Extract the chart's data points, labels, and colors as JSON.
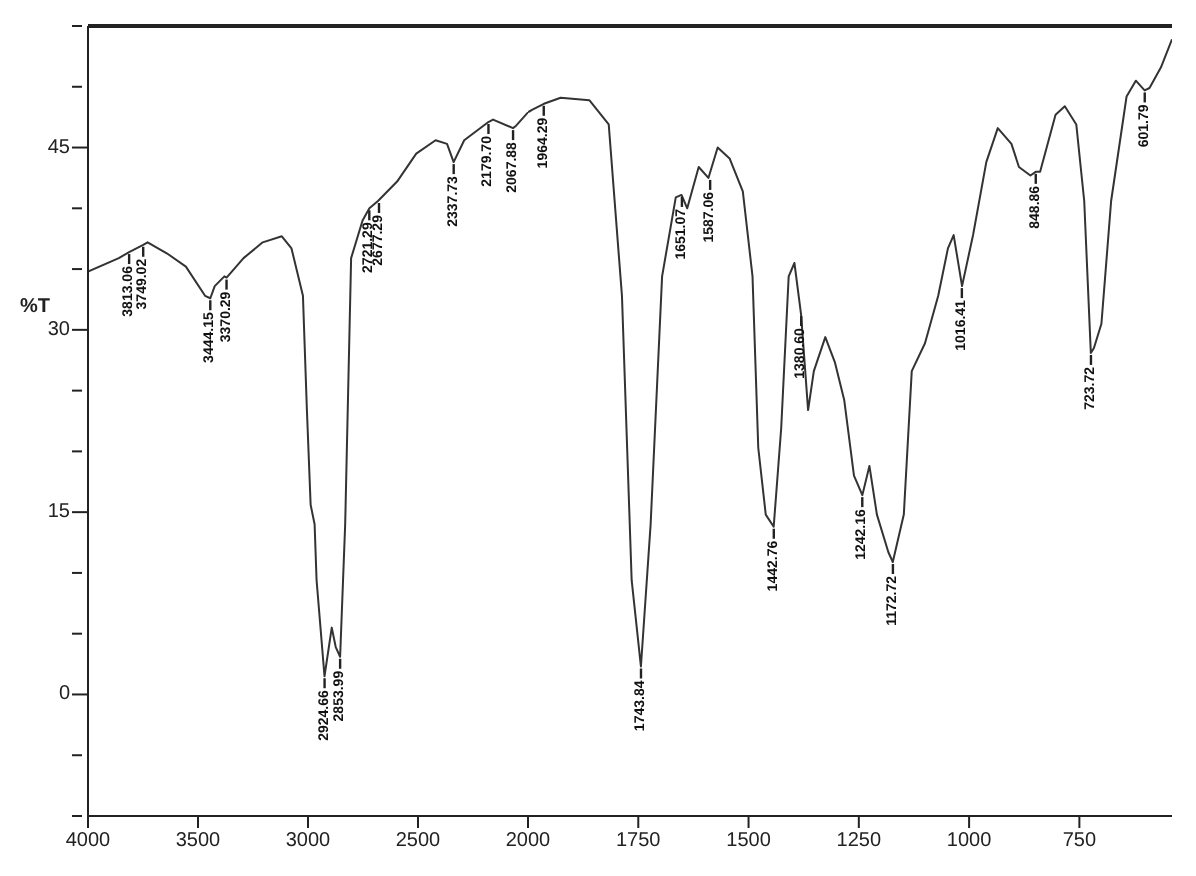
{
  "chart_data": [
    {
      "type": "line",
      "ylabel": "%T",
      "xlim": [
        4000,
        2000
      ],
      "xticks": [
        4000,
        3500,
        3000,
        2500,
        2000
      ],
      "ylim": [
        -10,
        55
      ],
      "yticks": [
        {
          "value": -10,
          "label": null
        },
        {
          "value": -5,
          "label": null
        },
        0,
        {
          "value": 5,
          "label": null
        },
        {
          "value": 10,
          "label": null
        },
        15,
        {
          "value": 20,
          "label": null
        },
        {
          "value": 25,
          "label": null
        },
        30,
        {
          "value": 35,
          "label": null
        },
        {
          "value": 40,
          "label": null
        },
        45,
        {
          "value": 50,
          "label": null
        },
        {
          "value": 55,
          "label": null
        }
      ],
      "marker": "none",
      "line_style": "solid",
      "series": [
        {
          "color": "#333333",
          "x": [
            4000,
            3860,
            3813,
            3749,
            3729,
            3642,
            3555,
            3468,
            3444,
            3424,
            3380,
            3370,
            3293,
            3206,
            3119,
            3075,
            3023,
            3005,
            2988,
            2970,
            2961,
            2925,
            2892,
            2874,
            2854,
            2831,
            2804,
            2752,
            2721,
            2682,
            2595,
            2508,
            2420,
            2368,
            2338,
            2290,
            2180,
            2159,
            2068,
            2054,
            2000
          ],
          "values": [
            34.8,
            35.9,
            36.4,
            37.0,
            37.2,
            36.3,
            35.2,
            32.8,
            32.6,
            33.6,
            34.4,
            34.3,
            35.9,
            37.2,
            37.7,
            36.7,
            32.8,
            23.4,
            15.6,
            14.0,
            9.4,
            1.5,
            5.5,
            3.9,
            3.1,
            14.0,
            35.9,
            39.0,
            40.0,
            40.6,
            42.2,
            44.5,
            45.6,
            45.3,
            43.8,
            45.6,
            47.1,
            47.3,
            46.6,
            46.8,
            47.9
          ]
        }
      ],
      "annotations": [
        {
          "text": "3813.06",
          "x": 3813.06,
          "y": 36.4
        },
        {
          "text": "3749.02",
          "x": 3749.02,
          "y": 37.0
        },
        {
          "text": "3444.15",
          "x": 3444.15,
          "y": 32.6
        },
        {
          "text": "3370.29",
          "x": 3370.29,
          "y": 34.3
        },
        {
          "text": "2924.66",
          "x": 2924.66,
          "y": 1.5
        },
        {
          "text": "2853.99",
          "x": 2853.99,
          "y": 3.1
        },
        {
          "text": "2721.29",
          "x": 2721.29,
          "y": 40.0
        },
        {
          "text": "2677.29",
          "x": 2677.29,
          "y": 40.6
        },
        {
          "text": "2337.73",
          "x": 2337.73,
          "y": 43.8
        },
        {
          "text": "2179.70",
          "x": 2179.7,
          "y": 47.1
        },
        {
          "text": "2067.88",
          "x": 2067.88,
          "y": 46.6
        }
      ]
    },
    {
      "type": "line",
      "tick_labels": "x",
      "xlim": [
        2000,
        540
      ],
      "xticks": [
        1750,
        1500,
        1250,
        1000,
        750
      ],
      "ylim": [
        -10,
        55
      ],
      "marker": "none",
      "line_style": "solid",
      "series": [
        {
          "color": "#333333",
          "x": [
            2000,
            1991,
            1964,
            1926,
            1861,
            1817,
            1787,
            1765,
            1744,
            1722,
            1696,
            1665,
            1652,
            1639,
            1613,
            1591,
            1570,
            1543,
            1513,
            1491,
            1478,
            1461,
            1443,
            1426,
            1409,
            1396,
            1381,
            1365,
            1352,
            1326,
            1304,
            1283,
            1261,
            1242,
            1226,
            1209,
            1183,
            1173,
            1148,
            1130,
            1100,
            1070,
            1048,
            1035,
            1016,
            991,
            961,
            935,
            904,
            887,
            861,
            849,
            839,
            804,
            783,
            757,
            739,
            724,
            717,
            700,
            678,
            643,
            622,
            602,
            591,
            565,
            540
          ],
          "values": [
            47.9,
            48.1,
            48.6,
            49.1,
            48.9,
            46.9,
            32.8,
            9.4,
            2.3,
            14.0,
            34.4,
            40.9,
            41.1,
            40.0,
            43.4,
            42.5,
            45.0,
            44.1,
            41.4,
            34.4,
            20.3,
            14.8,
            13.8,
            21.9,
            34.4,
            35.5,
            31.3,
            23.4,
            26.6,
            29.4,
            27.3,
            24.2,
            18.0,
            16.4,
            18.8,
            14.8,
            11.7,
            10.9,
            14.8,
            26.6,
            28.9,
            32.8,
            36.7,
            37.8,
            33.6,
            37.8,
            43.8,
            46.6,
            45.3,
            43.4,
            42.7,
            43.0,
            43.0,
            47.7,
            48.4,
            46.9,
            40.6,
            28.1,
            28.5,
            30.5,
            40.6,
            49.2,
            50.5,
            49.7,
            49.9,
            51.6,
            53.9
          ]
        }
      ],
      "annotations": [
        {
          "text": "1964.29",
          "x": 1964.29,
          "y": 48.6
        },
        {
          "text": "1743.84",
          "x": 1743.84,
          "y": 2.3
        },
        {
          "text": "1651.07",
          "x": 1651.07,
          "y": 41.1
        },
        {
          "text": "1587.06",
          "x": 1587.06,
          "y": 42.5
        },
        {
          "text": "1442.76",
          "x": 1442.76,
          "y": 13.8
        },
        {
          "text": "1380.60",
          "x": 1380.6,
          "y": 31.3
        },
        {
          "text": "1242.16",
          "x": 1242.16,
          "y": 16.4
        },
        {
          "text": "1172.72",
          "x": 1172.72,
          "y": 10.9
        },
        {
          "text": "1016.41",
          "x": 1016.41,
          "y": 33.6
        },
        {
          "text": "848.86",
          "x": 848.86,
          "y": 43.0
        },
        {
          "text": "723.72",
          "x": 723.72,
          "y": 28.1
        },
        {
          "text": "601.79",
          "x": 601.79,
          "y": 49.7
        }
      ]
    }
  ]
}
